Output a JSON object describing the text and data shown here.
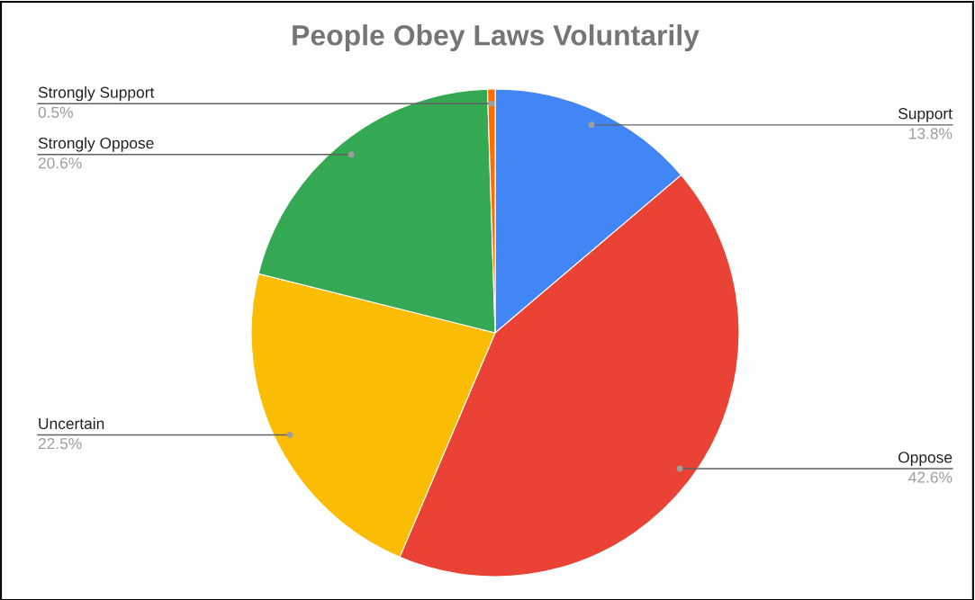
{
  "chart_data": {
    "type": "pie",
    "title": "People Obey Laws Voluntarily",
    "categories": [
      "Support",
      "Oppose",
      "Uncertain",
      "Strongly Oppose",
      "Strongly Support"
    ],
    "values": [
      13.8,
      42.6,
      22.5,
      20.6,
      0.5
    ],
    "value_labels": [
      "13.8%",
      "42.6%",
      "22.5%",
      "20.6%",
      "0.5%"
    ],
    "colors": [
      "#4285f4",
      "#ea4335",
      "#fbbc04",
      "#34a853",
      "#ff6d01"
    ],
    "legend": false
  }
}
